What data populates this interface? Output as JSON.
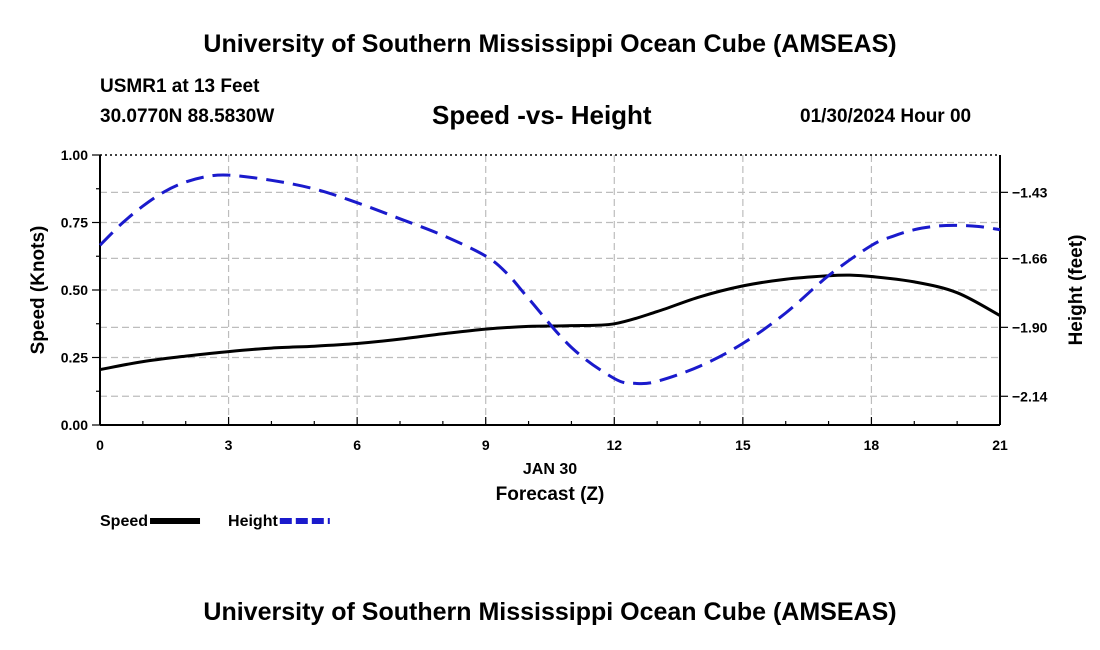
{
  "header": {
    "title": "University of Southern Mississippi Ocean Cube (AMSEAS)",
    "station": "USMR1 at 13 Feet",
    "coords": "30.0770N  88.5830W",
    "subtitle": "Speed -vs- Height",
    "date": "01/30/2024 Hour 00"
  },
  "footer": {
    "title": "University of Southern Mississippi Ocean Cube (AMSEAS)"
  },
  "chart_data": {
    "type": "line",
    "title": "Speed -vs- Height",
    "xlabel": "Forecast (Z)",
    "xlabel_date": "JAN 30",
    "ylabel": "Speed (Knots)",
    "y2label": "Height (feet)",
    "xlim": [
      0,
      21
    ],
    "ylim": [
      0,
      1
    ],
    "y2lim": [
      -2.24,
      -1.3
    ],
    "x_ticks": [
      0,
      3,
      6,
      9,
      12,
      15,
      18,
      21
    ],
    "x_tick_labels": [
      "0",
      "3",
      "6",
      "9",
      "12",
      "15",
      "18",
      "21"
    ],
    "y_ticks": [
      0,
      0.25,
      0.5,
      0.75,
      1.0
    ],
    "y_tick_labels": [
      "0.00",
      "0.25",
      "0.50",
      "0.75",
      "1.00"
    ],
    "y2_ticks": [
      -1.43,
      -1.66,
      -1.9,
      -2.14
    ],
    "y2_tick_labels": [
      "−1.43",
      "−1.66",
      "−1.90",
      "−2.14"
    ],
    "grid": true,
    "series": [
      {
        "name": "Speed",
        "axis": "left",
        "color": "#000000",
        "dash": "solid",
        "x": [
          0,
          1,
          2,
          3,
          4,
          5,
          6,
          7,
          8,
          9,
          10,
          11,
          12,
          13,
          14,
          15,
          16,
          17,
          17.5,
          18,
          19,
          20,
          21
        ],
        "values": [
          0.205,
          0.235,
          0.255,
          0.272,
          0.285,
          0.292,
          0.302,
          0.318,
          0.338,
          0.355,
          0.365,
          0.368,
          0.375,
          0.42,
          0.475,
          0.515,
          0.54,
          0.553,
          0.555,
          0.55,
          0.53,
          0.49,
          0.405
        ]
      },
      {
        "name": "Height",
        "axis": "right",
        "color": "#1a1acc",
        "dash": "dashed",
        "x": [
          0,
          0.5,
          1,
          1.5,
          2,
          2.5,
          3,
          4,
          5,
          6,
          7,
          8,
          9,
          9.5,
          10,
          11,
          12,
          12.5,
          13,
          14,
          15,
          16,
          17,
          18,
          18.5,
          19,
          19.5,
          20,
          20.5,
          21
        ],
        "values": [
          -1.614,
          -1.54,
          -1.478,
          -1.428,
          -1.394,
          -1.375,
          -1.37,
          -1.388,
          -1.418,
          -1.466,
          -1.522,
          -1.58,
          -1.652,
          -1.713,
          -1.8,
          -1.97,
          -2.078,
          -2.095,
          -2.088,
          -2.035,
          -1.956,
          -1.85,
          -1.72,
          -1.615,
          -1.583,
          -1.56,
          -1.548,
          -1.545,
          -1.549,
          -1.56
        ]
      }
    ]
  }
}
